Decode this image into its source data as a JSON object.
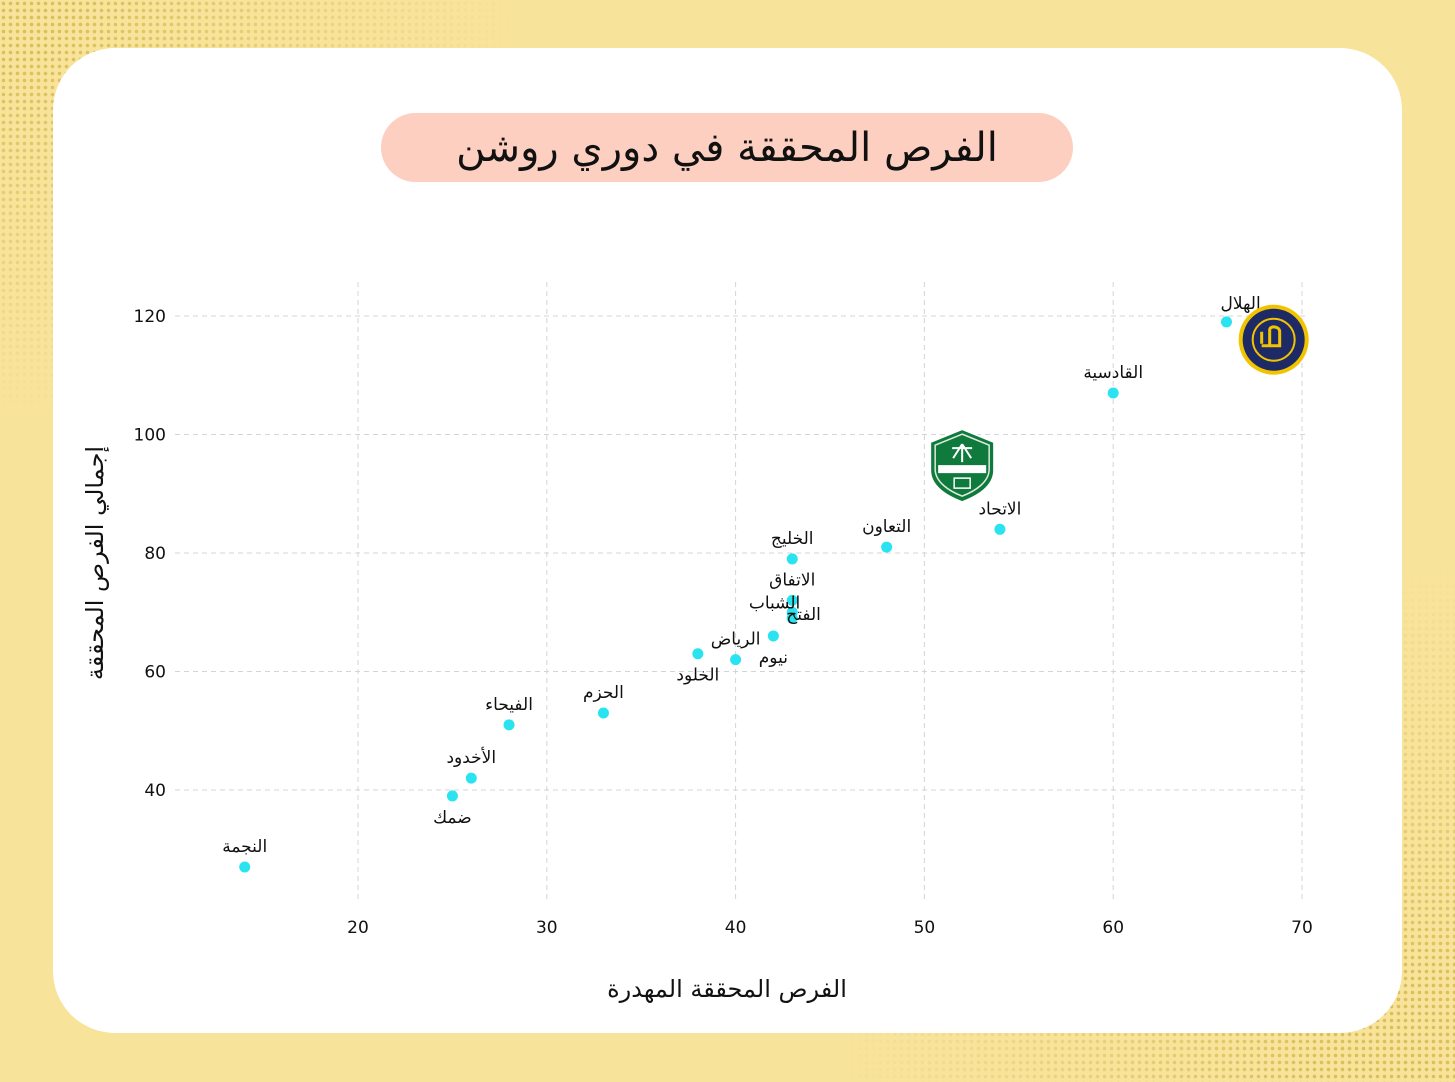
{
  "title": "الفرص المحققة في دوري روشن",
  "chart_data": {
    "type": "scatter",
    "title": "الفرص المحققة في دوري روشن",
    "xlabel": "الفرص المحققة المهدرة",
    "ylabel": "إجمالي الفرص المحققة",
    "xlim": [
      10,
      70
    ],
    "ylim": [
      22,
      125
    ],
    "xticks": [
      20,
      30,
      40,
      50,
      60,
      70
    ],
    "yticks": [
      40,
      60,
      80,
      100,
      120
    ],
    "grid": true,
    "point_color": "#29e3f0",
    "points": [
      {
        "label": "الهلال",
        "x": 66,
        "y": 119,
        "label_pos": "above-left"
      },
      {
        "label": "النصر",
        "x": 68.5,
        "y": 116,
        "logo": "nassr-logo",
        "label_pos": "none"
      },
      {
        "label": "القادسية",
        "x": 60,
        "y": 107,
        "label_pos": "above"
      },
      {
        "label": "الأهلي",
        "x": 52,
        "y": 95,
        "logo": "ahli-logo",
        "label_pos": "none"
      },
      {
        "label": "الاتحاد",
        "x": 54,
        "y": 84,
        "label_pos": "above"
      },
      {
        "label": "التعاون",
        "x": 48,
        "y": 81,
        "label_pos": "above"
      },
      {
        "label": "الخليج",
        "x": 43,
        "y": 79,
        "label_pos": "above"
      },
      {
        "label": "الاتفاق",
        "x": 43,
        "y": 72,
        "label_pos": "above"
      },
      {
        "label": "الشباب",
        "x": 43,
        "y": 70,
        "label_pos": "right"
      },
      {
        "label": "الفتح",
        "x": 43,
        "y": 69,
        "label_pos": "left"
      },
      {
        "label": "نيوم",
        "x": 42,
        "y": 66,
        "label_pos": "below"
      },
      {
        "label": "الرياض",
        "x": 40,
        "y": 62,
        "label_pos": "above"
      },
      {
        "label": "الخلود",
        "x": 38,
        "y": 63,
        "label_pos": "below"
      },
      {
        "label": "الحزم",
        "x": 33,
        "y": 53,
        "label_pos": "above"
      },
      {
        "label": "الفيحاء",
        "x": 28,
        "y": 51,
        "label_pos": "above"
      },
      {
        "label": "الأخدود",
        "x": 26,
        "y": 42,
        "label_pos": "above"
      },
      {
        "label": "ضمك",
        "x": 25,
        "y": 39,
        "label_pos": "below"
      },
      {
        "label": "النجمة",
        "x": 14,
        "y": 27,
        "label_pos": "above"
      }
    ]
  }
}
